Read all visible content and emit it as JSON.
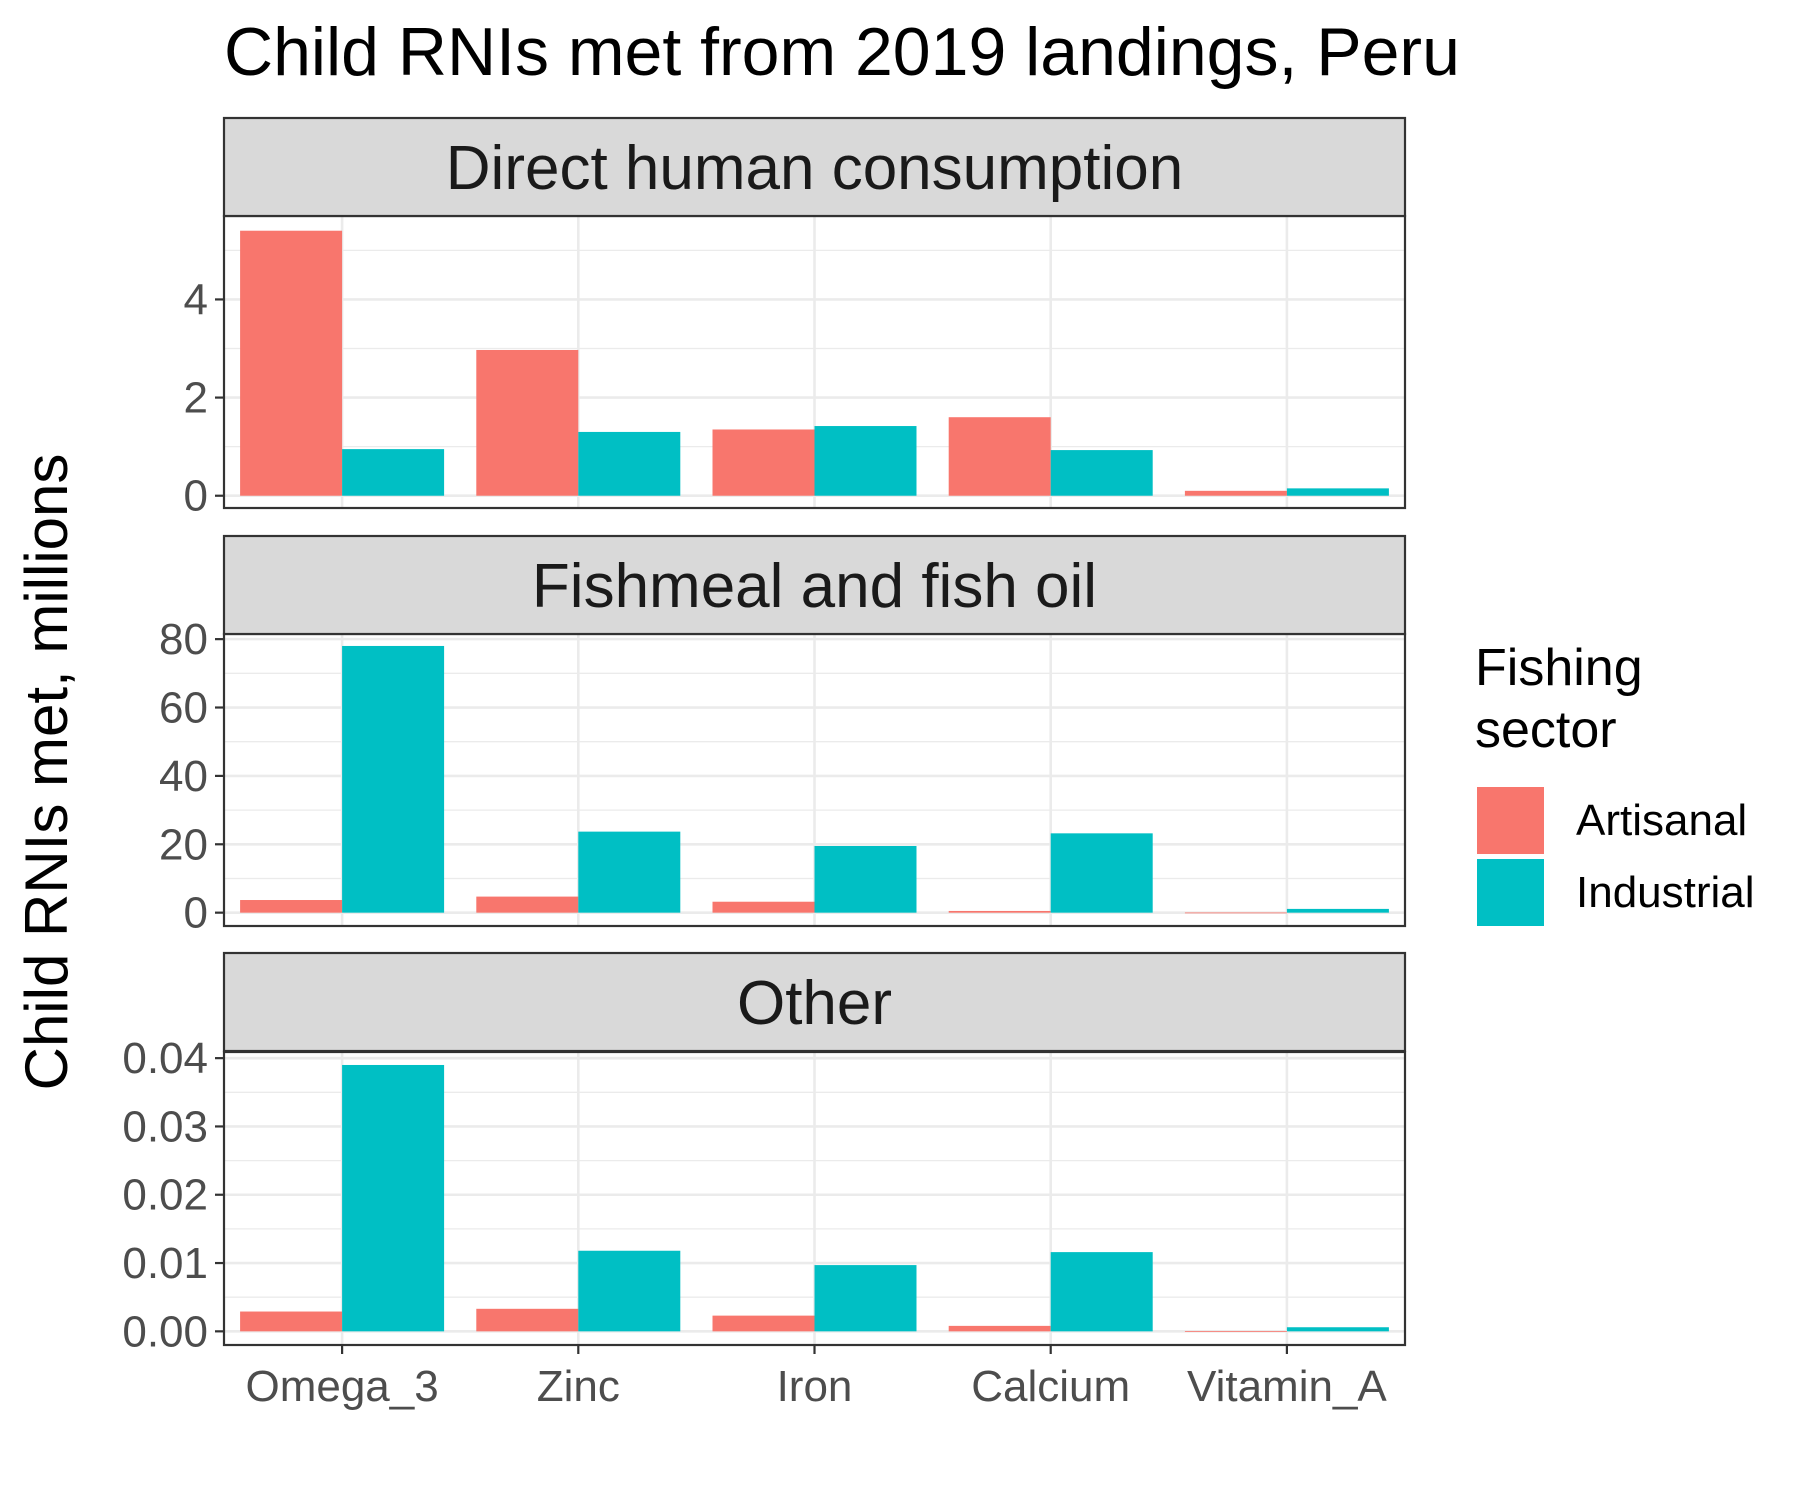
{
  "chart_data": {
    "type": "bar",
    "title": "Child RNIs met from 2019 landings, Peru",
    "ylabel": "Child RNIs met, millions",
    "xlabel": "",
    "categories": [
      "Omega_3",
      "Zinc",
      "Iron",
      "Calcium",
      "Vitamin_A"
    ],
    "legend": {
      "title_lines": [
        "Fishing",
        "sector"
      ],
      "placement": "right",
      "entries": [
        {
          "name": "Artisanal",
          "color": "#F8766D"
        },
        {
          "name": "Industrial",
          "color": "#00BFC4"
        }
      ]
    },
    "grid": true,
    "panels": [
      {
        "label": "Direct human consumption",
        "ylim": [
          -0.25,
          5.7
        ],
        "ticks": [
          0,
          2,
          4
        ],
        "tick_labels": [
          "0",
          "2",
          "4"
        ],
        "series": [
          {
            "name": "Artisanal",
            "values": [
              5.4,
              2.97,
              1.35,
              1.6,
              0.1
            ]
          },
          {
            "name": "Industrial",
            "values": [
              0.95,
              1.3,
              1.42,
              0.93,
              0.15
            ]
          }
        ]
      },
      {
        "label": "Fishmeal and fish oil",
        "ylim": [
          -3.9,
          81.5
        ],
        "ticks": [
          0,
          20,
          40,
          60,
          80
        ],
        "tick_labels": [
          "0",
          "20",
          "40",
          "60",
          "80"
        ],
        "series": [
          {
            "name": "Artisanal",
            "values": [
              3.7,
              4.7,
              3.2,
              0.5,
              0.05
            ]
          },
          {
            "name": "Industrial",
            "values": [
              78,
              23.7,
              19.5,
              23.2,
              1.1
            ]
          }
        ]
      },
      {
        "label": "Other",
        "ylim": [
          -0.002,
          0.0409
        ],
        "ticks": [
          0,
          0.01,
          0.02,
          0.03,
          0.04
        ],
        "tick_labels": [
          "0.00",
          "0.01",
          "0.02",
          "0.03",
          "0.04"
        ],
        "series": [
          {
            "name": "Artisanal",
            "values": [
              0.0029,
              0.0033,
              0.0023,
              0.0008,
              5e-05
            ]
          },
          {
            "name": "Industrial",
            "values": [
              0.039,
              0.0118,
              0.0097,
              0.0116,
              0.0006
            ]
          }
        ]
      }
    ]
  }
}
